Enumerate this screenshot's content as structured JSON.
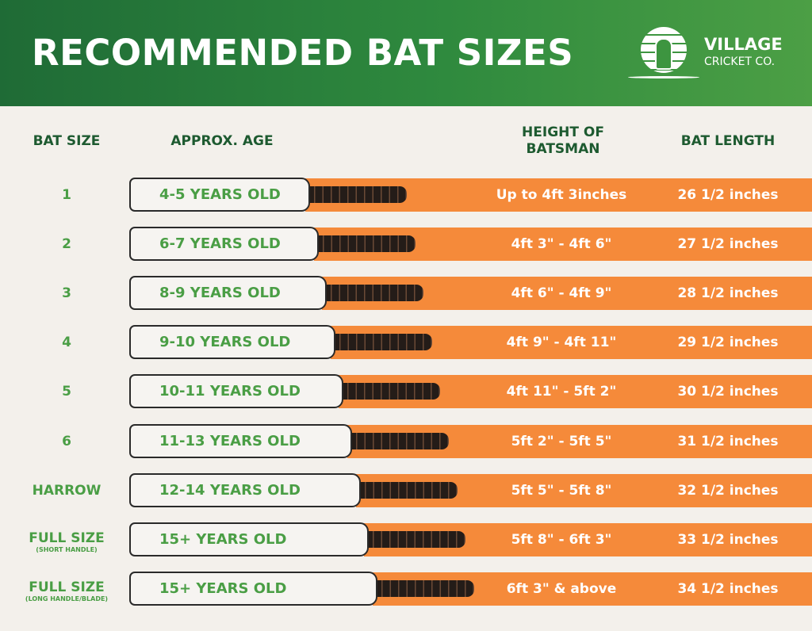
{
  "header": {
    "title": "RECOMMENDED BAT SIZES",
    "logo": {
      "line1": "VILLAGE",
      "line2": "CRICKET CO."
    }
  },
  "columns": {
    "size": "BAT SIZE",
    "age": "APPROX. AGE",
    "height": "HEIGHT OF BATSMAN",
    "length": "BAT LENGTH"
  },
  "colors": {
    "header_green": "#1f6b36",
    "accent_green": "#4a9e45",
    "orange": "#f58a3a",
    "background": "#f3f0eb"
  },
  "rows": [
    {
      "size": "1",
      "note": "",
      "age": "4-5 YEARS OLD",
      "height": "Up to 4ft 3inches",
      "length": "26 1/2 inches"
    },
    {
      "size": "2",
      "note": "",
      "age": "6-7 YEARS OLD",
      "height": "4ft 3\" - 4ft 6\"",
      "length": "27 1/2 inches"
    },
    {
      "size": "3",
      "note": "",
      "age": "8-9 YEARS OLD",
      "height": "4ft 6\" - 4ft 9\"",
      "length": "28 1/2 inches"
    },
    {
      "size": "4",
      "note": "",
      "age": "9-10 YEARS OLD",
      "height": "4ft 9\" - 4ft 11\"",
      "length": "29 1/2 inches"
    },
    {
      "size": "5",
      "note": "",
      "age": "10-11 YEARS OLD",
      "height": "4ft 11\" - 5ft 2\"",
      "length": "30 1/2 inches"
    },
    {
      "size": "6",
      "note": "",
      "age": "11-13 YEARS OLD",
      "height": "5ft 2\" - 5ft 5\"",
      "length": "31 1/2 inches"
    },
    {
      "size": "HARROW",
      "note": "",
      "age": "12-14 YEARS OLD",
      "height": "5ft 5\" - 5ft 8\"",
      "length": "32 1/2 inches"
    },
    {
      "size": "FULL SIZE",
      "note": "(SHORT HANDLE)",
      "age": "15+ YEARS OLD",
      "height": "5ft 8\" - 6ft 3\"",
      "length": "33 1/2 inches"
    },
    {
      "size": "FULL SIZE",
      "note": "(LONG HANDLE/BLADE)",
      "age": "15+ YEARS OLD",
      "height": "6ft 3\" & above",
      "length": "34 1/2 inches"
    }
  ]
}
